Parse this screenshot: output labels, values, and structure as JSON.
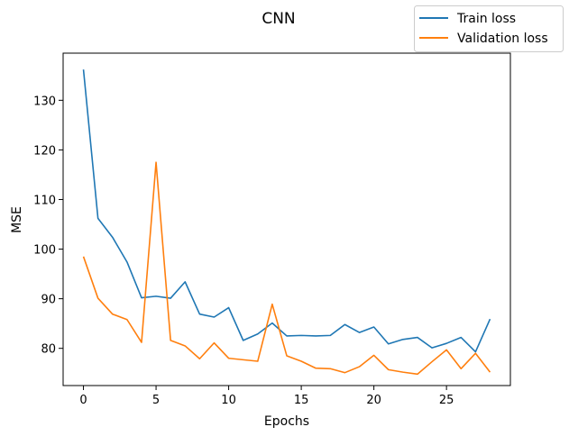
{
  "chart_data": {
    "type": "line",
    "title": "CNN",
    "xlabel": "Epochs",
    "ylabel": "MSE",
    "xlim": [
      -1.4,
      29.4
    ],
    "ylim": [
      72.5,
      139.5
    ],
    "xticks": [
      0,
      5,
      10,
      15,
      20,
      25
    ],
    "yticks": [
      80,
      90,
      100,
      110,
      120,
      130
    ],
    "grid": false,
    "legend_position": "top-right",
    "x": [
      0,
      1,
      2,
      3,
      4,
      5,
      6,
      7,
      8,
      9,
      10,
      11,
      12,
      13,
      14,
      15,
      16,
      17,
      18,
      19,
      20,
      21,
      22,
      23,
      24,
      25,
      26,
      27,
      28
    ],
    "series": [
      {
        "name": "Train loss",
        "color": "#1f77b4",
        "values": [
          136.2,
          106.2,
          102.4,
          97.4,
          90.2,
          90.5,
          90.1,
          93.4,
          86.9,
          86.3,
          88.2,
          81.6,
          82.9,
          85.1,
          82.5,
          82.6,
          82.5,
          82.6,
          84.8,
          83.2,
          84.3,
          80.9,
          81.8,
          82.2,
          80.1,
          81.0,
          82.2,
          79.3,
          85.9
        ]
      },
      {
        "name": "Validation loss",
        "color": "#ff7f0e",
        "values": [
          98.5,
          90.1,
          86.9,
          85.8,
          81.2,
          117.5,
          81.6,
          80.5,
          77.9,
          81.1,
          78.0,
          77.7,
          77.4,
          88.9,
          78.5,
          77.4,
          76.0,
          75.9,
          75.1,
          76.3,
          78.6,
          75.7,
          75.2,
          74.8,
          77.3,
          79.7,
          75.9,
          79.0,
          75.2
        ]
      }
    ]
  }
}
